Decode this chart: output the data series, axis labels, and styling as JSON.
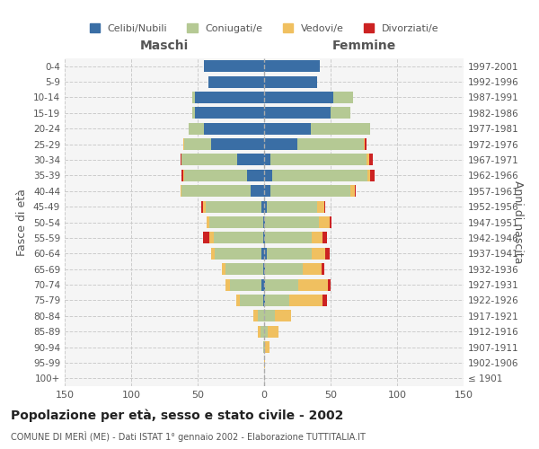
{
  "age_groups": [
    "100+",
    "95-99",
    "90-94",
    "85-89",
    "80-84",
    "75-79",
    "70-74",
    "65-69",
    "60-64",
    "55-59",
    "50-54",
    "45-49",
    "40-44",
    "35-39",
    "30-34",
    "25-29",
    "20-24",
    "15-19",
    "10-14",
    "5-9",
    "0-4"
  ],
  "birth_years": [
    "≤ 1901",
    "1902-1906",
    "1907-1911",
    "1912-1916",
    "1917-1921",
    "1922-1926",
    "1927-1931",
    "1932-1936",
    "1937-1941",
    "1942-1946",
    "1947-1951",
    "1952-1956",
    "1957-1961",
    "1962-1966",
    "1967-1971",
    "1972-1976",
    "1977-1981",
    "1982-1986",
    "1987-1991",
    "1992-1996",
    "1997-2001"
  ],
  "male": {
    "celibi": [
      0,
      0,
      0,
      0,
      0,
      1,
      2,
      1,
      2,
      1,
      1,
      2,
      10,
      13,
      20,
      40,
      45,
      52,
      52,
      42,
      45
    ],
    "coniugati": [
      0,
      0,
      1,
      3,
      5,
      17,
      24,
      28,
      35,
      37,
      40,
      42,
      52,
      47,
      42,
      20,
      12,
      2,
      2,
      0,
      0
    ],
    "vedovi": [
      0,
      0,
      0,
      2,
      3,
      3,
      3,
      3,
      3,
      3,
      2,
      2,
      1,
      1,
      0,
      1,
      0,
      0,
      0,
      0,
      0
    ],
    "divorziati": [
      0,
      0,
      0,
      0,
      0,
      0,
      0,
      0,
      0,
      5,
      0,
      1,
      0,
      1,
      1,
      0,
      0,
      0,
      0,
      0,
      0
    ]
  },
  "female": {
    "nubili": [
      0,
      0,
      0,
      0,
      0,
      1,
      1,
      1,
      2,
      1,
      1,
      2,
      5,
      6,
      5,
      25,
      35,
      50,
      52,
      40,
      42
    ],
    "coniugate": [
      0,
      0,
      1,
      3,
      8,
      18,
      25,
      28,
      34,
      35,
      40,
      38,
      60,
      72,
      72,
      50,
      45,
      15,
      15,
      0,
      0
    ],
    "vedove": [
      0,
      1,
      3,
      8,
      12,
      25,
      22,
      14,
      10,
      8,
      8,
      5,
      3,
      2,
      2,
      1,
      0,
      0,
      0,
      0,
      0
    ],
    "divorziate": [
      0,
      0,
      0,
      0,
      0,
      3,
      2,
      2,
      3,
      3,
      2,
      1,
      1,
      3,
      3,
      1,
      0,
      0,
      0,
      0,
      0
    ]
  },
  "colors": {
    "celibi_nubili": "#3a6ea5",
    "coniugati": "#b5c994",
    "vedovi": "#f0c060",
    "divorziati": "#cc2222"
  },
  "title": "Popolazione per età, sesso e stato civile - 2002",
  "subtitle": "COMUNE DI MERÌ (ME) - Dati ISTAT 1° gennaio 2002 - Elaborazione TUTTITALIA.IT",
  "ylabel_left": "Fasce di età",
  "ylabel_right": "Anni di nascita",
  "xlabel_left": "Maschi",
  "xlabel_right": "Femmine",
  "xlim": 150,
  "legend_labels": [
    "Celibi/Nubili",
    "Coniugati/e",
    "Vedovi/e",
    "Divorziati/e"
  ],
  "bg_color": "#f5f5f5"
}
